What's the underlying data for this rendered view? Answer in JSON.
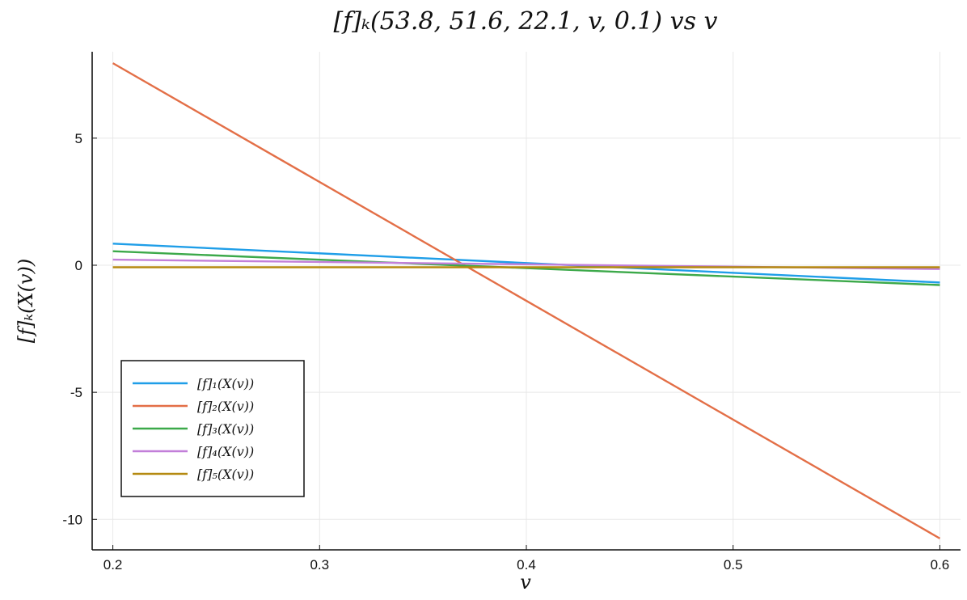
{
  "chart_data": {
    "type": "line",
    "title": "[f]ₖ(53.8, 51.6, 22.1, v, 0.1) vs v",
    "xlabel": "v",
    "ylabel": "[f]ₖ(X(v))",
    "xlim": [
      0.19,
      0.61
    ],
    "ylim": [
      -11.2,
      8.4
    ],
    "xticks": [
      0.2,
      0.3,
      0.4,
      0.5,
      0.6
    ],
    "xtick_labels": [
      "0.2",
      "0.3",
      "0.4",
      "0.5",
      "0.6"
    ],
    "yticks": [
      5,
      0,
      -5,
      -10
    ],
    "ytick_labels": [
      "5",
      "0",
      "-5",
      "-10"
    ],
    "grid": true,
    "legend_position": "bottom-left",
    "series": [
      {
        "name": "[f]₁(X(v))",
        "color": "#1f9ee8",
        "x": [
          0.2,
          0.6
        ],
        "y": [
          0.85,
          -0.68
        ]
      },
      {
        "name": "[f]₂(X(v))",
        "color": "#e36f47",
        "x": [
          0.2,
          0.6
        ],
        "y": [
          7.95,
          -10.75
        ]
      },
      {
        "name": "[f]₃(X(v))",
        "color": "#3ca94a",
        "x": [
          0.2,
          0.6
        ],
        "y": [
          0.55,
          -0.78
        ]
      },
      {
        "name": "[f]₄(X(v))",
        "color": "#c27fd9",
        "x": [
          0.2,
          0.6
        ],
        "y": [
          0.22,
          -0.15
        ]
      },
      {
        "name": "[f]₅(X(v))",
        "color": "#b58a11",
        "x": [
          0.2,
          0.6
        ],
        "y": [
          -0.08,
          -0.08
        ]
      }
    ]
  }
}
